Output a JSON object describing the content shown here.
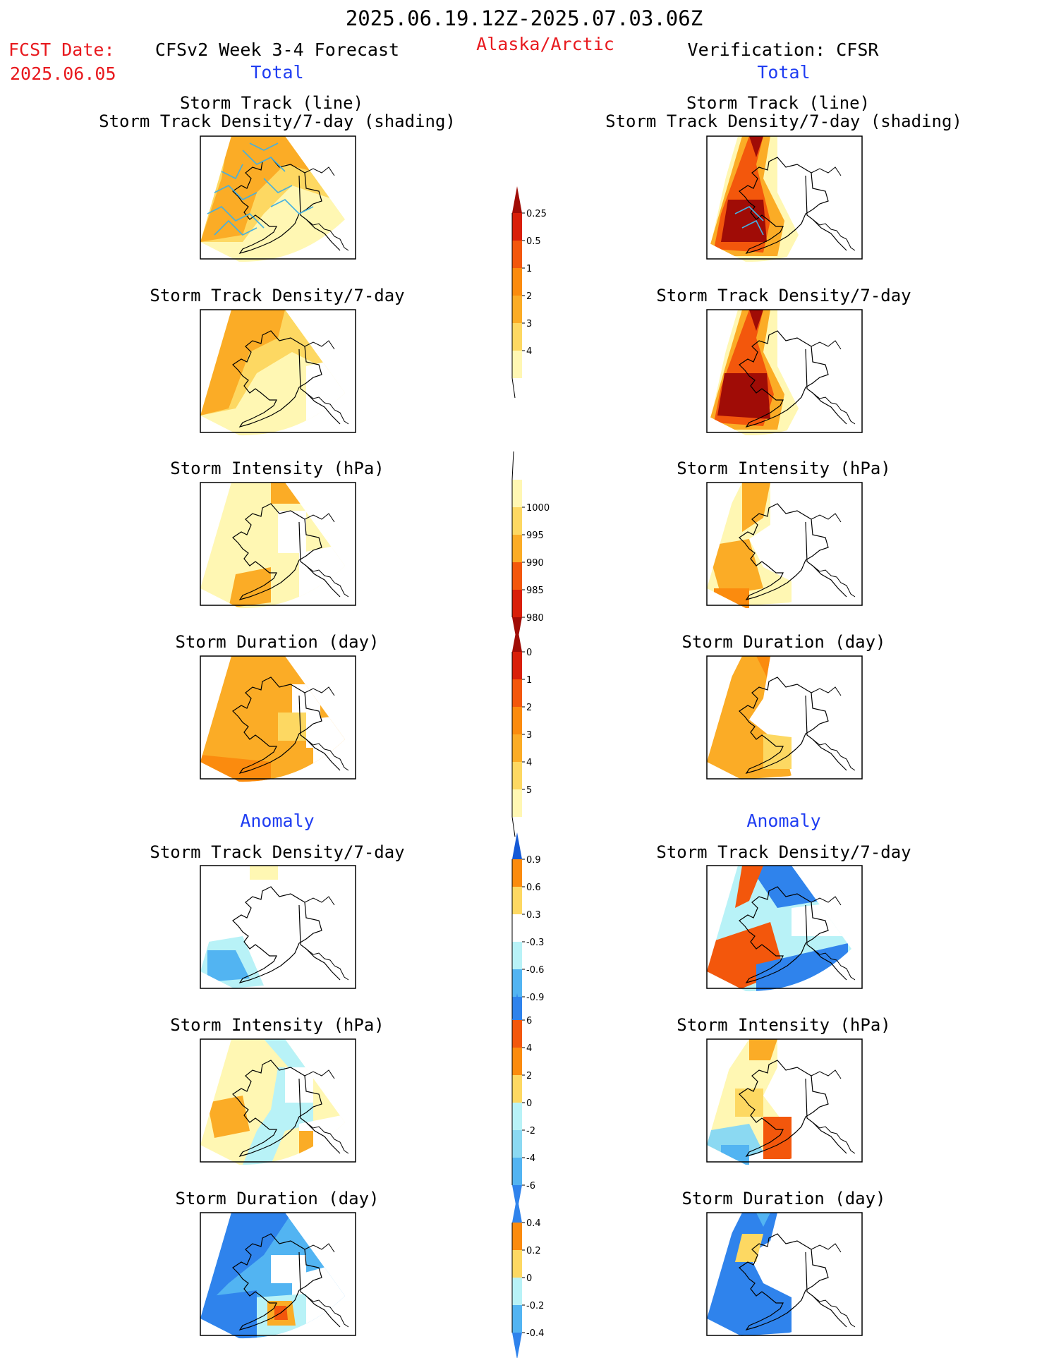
{
  "header": {
    "period": "2025.06.19.12Z-2025.07.03.06Z",
    "fcst_label": "FCST Date:",
    "fcst_date": "2025.06.05",
    "model": "CFSv2 Week 3-4 Forecast",
    "region": "Alaska/Arctic",
    "verification": "Verification: CFSR"
  },
  "sections": {
    "total_left": "Total",
    "total_right": "Total",
    "anomaly_left": "Anomaly",
    "anomaly_right": "Anomaly"
  },
  "panel_titles": {
    "track_line": "Storm Track (line)",
    "track_shading": "Storm Track Density/7-day (shading)",
    "density": "Storm Track Density/7-day",
    "intensity": "Storm Intensity (hPa)",
    "duration": "Storm Duration (day)"
  },
  "colors": {
    "warm": [
      "#fff7b3",
      "#fdd862",
      "#fbac26",
      "#fb8b0e",
      "#f3570c",
      "#d91f09",
      "#a00c06"
    ],
    "cool": [
      "#b8f2f7",
      "#8bd9f2",
      "#52b4f2",
      "#2f83ec",
      "#1459d6"
    ],
    "track_line": "#45b0e0"
  },
  "chart_data": [
    {
      "type": "colorbar",
      "name": "total_density",
      "ticks": [
        "0.25",
        "0.5",
        "1",
        "2",
        "3",
        "4"
      ],
      "colors": [
        "#fff7b3",
        "#fdd862",
        "#fbac26",
        "#fb8b0e",
        "#f3570c",
        "#d91f09",
        "#a00c06"
      ]
    },
    {
      "type": "colorbar",
      "name": "total_intensity",
      "ticks": [
        "1000",
        "995",
        "990",
        "985",
        "980"
      ],
      "colors": [
        "#fff7b3",
        "#fdd862",
        "#fbac26",
        "#f3570c",
        "#d91f09",
        "#a00c06"
      ]
    },
    {
      "type": "colorbar",
      "name": "total_duration",
      "ticks": [
        "0",
        "1",
        "2",
        "3",
        "4",
        "5"
      ],
      "colors": [
        "#fff7b3",
        "#fdd862",
        "#fbac26",
        "#fb8b0e",
        "#f3570c",
        "#d91f09",
        "#a00c06"
      ]
    },
    {
      "type": "colorbar",
      "name": "anomaly_density",
      "ticks": [
        "0.9",
        "0.6",
        "0.3",
        "-0.3",
        "-0.6",
        "-0.9"
      ],
      "colors": [
        "#f3570c",
        "#fb8b0e",
        "#fdd862",
        "#ffffff",
        "#b8f2f7",
        "#52b4f2",
        "#2f83ec",
        "#1459d6"
      ]
    },
    {
      "type": "colorbar",
      "name": "anomaly_intensity",
      "ticks": [
        "6",
        "4",
        "2",
        "0",
        "-2",
        "-4",
        "-6"
      ],
      "colors": [
        "#a00c06",
        "#f3570c",
        "#fb8b0e",
        "#fdd862",
        "#b8f2f7",
        "#8bd9f2",
        "#52b4f2",
        "#2f83ec"
      ]
    },
    {
      "type": "colorbar",
      "name": "anomaly_duration",
      "ticks": [
        "0.4",
        "0.2",
        "0",
        "-0.2",
        "-0.4"
      ],
      "colors": [
        "#f3570c",
        "#fb8b0e",
        "#fdd862",
        "#b8f2f7",
        "#52b4f2",
        "#2f83ec"
      ]
    }
  ]
}
